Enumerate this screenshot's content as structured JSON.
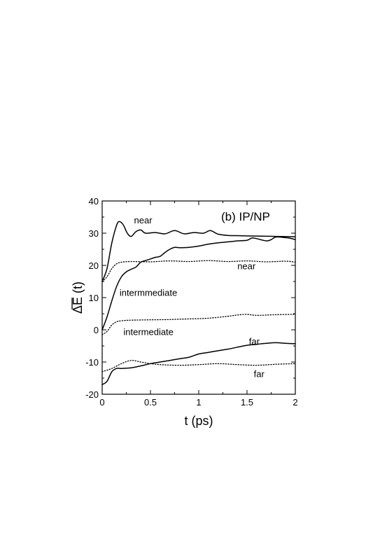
{
  "chart_data": {
    "type": "line",
    "panel_label": "(b) IP/NP",
    "xlabel": "t (ps)",
    "ylabel": "ΔE (t)",
    "xlim": [
      0,
      2
    ],
    "ylim": [
      -20,
      40
    ],
    "xticks": [
      0,
      0.5,
      1,
      1.5,
      2
    ],
    "xtick_labels": [
      "0",
      "0.5",
      "1",
      "1.5",
      "2"
    ],
    "yticks": [
      -20,
      -10,
      0,
      10,
      20,
      30,
      40
    ],
    "ytick_labels": [
      "-20",
      "-10",
      "0",
      "10",
      "20",
      "30",
      "40"
    ],
    "grid": false,
    "series": [
      {
        "style": "solid",
        "points": [
          [
            0,
            15
          ],
          [
            0.05,
            19
          ],
          [
            0.1,
            27
          ],
          [
            0.15,
            32.5
          ],
          [
            0.18,
            33.6
          ],
          [
            0.22,
            32.5
          ],
          [
            0.26,
            30
          ],
          [
            0.3,
            29
          ],
          [
            0.35,
            30.5
          ],
          [
            0.4,
            31
          ],
          [
            0.45,
            30
          ],
          [
            0.55,
            30.2
          ],
          [
            0.65,
            29.8
          ],
          [
            0.75,
            30.8
          ],
          [
            0.85,
            29.8
          ],
          [
            0.95,
            30.2
          ],
          [
            1.05,
            30
          ],
          [
            1.12,
            30.8
          ],
          [
            1.2,
            29.7
          ],
          [
            1.3,
            29.3
          ],
          [
            1.45,
            29.2
          ],
          [
            1.6,
            29.1
          ],
          [
            1.8,
            29
          ],
          [
            2,
            28.9
          ]
        ]
      },
      {
        "style": "solid",
        "points": [
          [
            0,
            0
          ],
          [
            0.05,
            4
          ],
          [
            0.1,
            9
          ],
          [
            0.15,
            13.5
          ],
          [
            0.2,
            16.5
          ],
          [
            0.25,
            18
          ],
          [
            0.3,
            18.8
          ],
          [
            0.35,
            19.5
          ],
          [
            0.4,
            21
          ],
          [
            0.45,
            21.5
          ],
          [
            0.5,
            22
          ],
          [
            0.55,
            22.5
          ],
          [
            0.6,
            22.8
          ],
          [
            0.65,
            24
          ],
          [
            0.7,
            25
          ],
          [
            0.75,
            25.6
          ],
          [
            0.8,
            25.5
          ],
          [
            0.9,
            25.6
          ],
          [
            1,
            26
          ],
          [
            1.1,
            26.6
          ],
          [
            1.2,
            27
          ],
          [
            1.3,
            27.3
          ],
          [
            1.4,
            27.6
          ],
          [
            1.5,
            27.8
          ],
          [
            1.55,
            28.5
          ],
          [
            1.6,
            28.3
          ],
          [
            1.7,
            27.6
          ],
          [
            1.75,
            28
          ],
          [
            1.8,
            28.8
          ],
          [
            1.9,
            28.6
          ],
          [
            1.95,
            28.4
          ],
          [
            2,
            28
          ]
        ]
      },
      {
        "style": "dotted",
        "points": [
          [
            0,
            15
          ],
          [
            0.05,
            16.5
          ],
          [
            0.1,
            19
          ],
          [
            0.15,
            20.5
          ],
          [
            0.2,
            21
          ],
          [
            0.3,
            21.2
          ],
          [
            0.5,
            21.1
          ],
          [
            0.7,
            21.4
          ],
          [
            0.9,
            21.2
          ],
          [
            1.1,
            21.5
          ],
          [
            1.3,
            21.2
          ],
          [
            1.5,
            21.4
          ],
          [
            1.7,
            21.1
          ],
          [
            1.9,
            21.3
          ],
          [
            2,
            21
          ]
        ]
      },
      {
        "style": "dotted",
        "points": [
          [
            0,
            -1.5
          ],
          [
            0.05,
            -0.5
          ],
          [
            0.1,
            1.5
          ],
          [
            0.15,
            2.5
          ],
          [
            0.2,
            2.8
          ],
          [
            0.3,
            3
          ],
          [
            0.5,
            3.1
          ],
          [
            0.7,
            3.2
          ],
          [
            0.9,
            3.4
          ],
          [
            1.1,
            3.6
          ],
          [
            1.3,
            4.2
          ],
          [
            1.4,
            4.6
          ],
          [
            1.5,
            4.8
          ],
          [
            1.6,
            4.5
          ],
          [
            1.8,
            4.7
          ],
          [
            2,
            4.8
          ]
        ]
      },
      {
        "style": "solid",
        "points": [
          [
            0,
            -17
          ],
          [
            0.05,
            -16
          ],
          [
            0.1,
            -13
          ],
          [
            0.15,
            -12
          ],
          [
            0.2,
            -12
          ],
          [
            0.3,
            -11.8
          ],
          [
            0.4,
            -11.2
          ],
          [
            0.5,
            -10.5
          ],
          [
            0.6,
            -10
          ],
          [
            0.7,
            -9.5
          ],
          [
            0.8,
            -9
          ],
          [
            0.9,
            -8.5
          ],
          [
            1,
            -7.5
          ],
          [
            1.1,
            -7
          ],
          [
            1.2,
            -6.5
          ],
          [
            1.3,
            -6
          ],
          [
            1.4,
            -5.4
          ],
          [
            1.5,
            -4.8
          ],
          [
            1.6,
            -4.5
          ],
          [
            1.7,
            -4.2
          ],
          [
            1.8,
            -4
          ],
          [
            1.9,
            -4.2
          ],
          [
            2,
            -4.3
          ]
        ]
      },
      {
        "style": "dotted",
        "points": [
          [
            0,
            -13
          ],
          [
            0.1,
            -12
          ],
          [
            0.2,
            -10.5
          ],
          [
            0.3,
            -9.5
          ],
          [
            0.4,
            -10
          ],
          [
            0.5,
            -10.5
          ],
          [
            0.6,
            -10.8
          ],
          [
            0.8,
            -11
          ],
          [
            1,
            -10.8
          ],
          [
            1.2,
            -10.5
          ],
          [
            1.4,
            -10.8
          ],
          [
            1.6,
            -11
          ],
          [
            1.8,
            -10.7
          ],
          [
            2,
            -10.5
          ]
        ]
      }
    ],
    "annotations": [
      {
        "text": "near",
        "x": 0.33,
        "y": 33
      },
      {
        "text": "near",
        "x": 1.4,
        "y": 18.8
      },
      {
        "text": "intermmediate",
        "x": 0.18,
        "y": 10.5
      },
      {
        "text": "intermediate",
        "x": 0.22,
        "y": -1.6
      },
      {
        "text": "far",
        "x": 1.52,
        "y": -4.6
      },
      {
        "text": "far",
        "x": 1.57,
        "y": -14.7
      }
    ]
  }
}
